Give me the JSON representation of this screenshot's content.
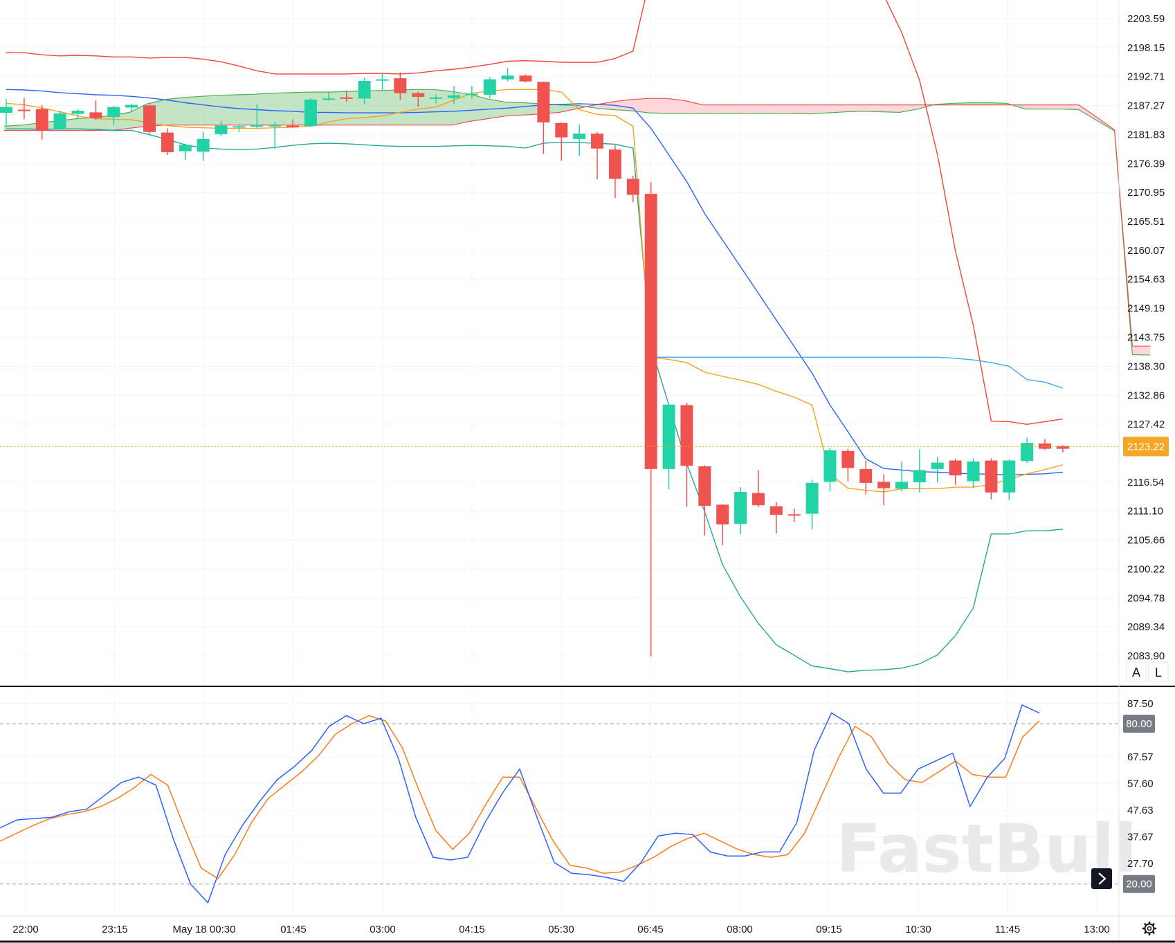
{
  "watermark": "FastBull",
  "price_marker": {
    "label": "2123.22",
    "value": 2123.22,
    "color": "#f5a623"
  },
  "osc_markers": [
    {
      "label": "80.00",
      "value": 80
    },
    {
      "label": "20.00",
      "value": 20
    }
  ],
  "buttons": {
    "auto": "A",
    "log": "L"
  },
  "icons": {
    "scroll": "chevron-right-icon",
    "settings": "gear-icon"
  },
  "colors": {
    "up": "#22d3a6",
    "down": "#ef5350",
    "upper_band": "#f44336",
    "lower_band": "#26a69a",
    "kijun": "#2962ff",
    "tenkan": "#f7a21b",
    "cloud_up": "#a5d6a7",
    "cloud_down": "#ffcdd2",
    "k_line": "#2962ff",
    "d_line": "#ff7a1a"
  },
  "chart_data": [
    {
      "type": "candlestick",
      "x_tick_labels": [
        "22:00",
        "23:15",
        "May 18 00:30",
        "01:45",
        "03:00",
        "04:15",
        "05:30",
        "06:45",
        "08:00",
        "09:15",
        "10:30",
        "11:45",
        "13:00"
      ],
      "y_tick_labels": [
        "2203.59",
        "2198.15",
        "2192.71",
        "2187.27",
        "2181.83",
        "2176.39",
        "2170.95",
        "2165.51",
        "2160.07",
        "2154.63",
        "2149.19",
        "2143.75",
        "2138.30",
        "2132.86",
        "2127.42",
        "2116.54",
        "2111.10",
        "2105.66",
        "2100.22",
        "2094.78",
        "2089.34",
        "2083.90"
      ],
      "y_range": [
        2081.3,
        2206.2
      ],
      "candles": [
        {
          "o": 2185.9,
          "h": 2188.5,
          "l": 2183.5,
          "c": 2187.0
        },
        {
          "o": 2186.5,
          "h": 2188.7,
          "l": 2184.7,
          "c": 2186.4
        },
        {
          "o": 2186.6,
          "h": 2187.4,
          "l": 2180.9,
          "c": 2182.6
        },
        {
          "o": 2182.9,
          "h": 2186.3,
          "l": 2182.5,
          "c": 2185.8
        },
        {
          "o": 2185.7,
          "h": 2186.6,
          "l": 2184.7,
          "c": 2186.3
        },
        {
          "o": 2186.0,
          "h": 2188.2,
          "l": 2184.6,
          "c": 2184.9
        },
        {
          "o": 2185.1,
          "h": 2187.2,
          "l": 2183.6,
          "c": 2187.0
        },
        {
          "o": 2186.9,
          "h": 2187.6,
          "l": 2186.0,
          "c": 2187.4
        },
        {
          "o": 2187.3,
          "h": 2187.5,
          "l": 2182.0,
          "c": 2182.3
        },
        {
          "o": 2182.2,
          "h": 2183.0,
          "l": 2178.0,
          "c": 2178.5
        },
        {
          "o": 2178.7,
          "h": 2180.1,
          "l": 2177.1,
          "c": 2179.9
        },
        {
          "o": 2178.6,
          "h": 2182.3,
          "l": 2176.9,
          "c": 2181.0
        },
        {
          "o": 2181.9,
          "h": 2184.4,
          "l": 2181.5,
          "c": 2183.5
        },
        {
          "o": 2183.2,
          "h": 2183.6,
          "l": 2182.3,
          "c": 2183.4
        },
        {
          "o": 2183.3,
          "h": 2187.5,
          "l": 2183.0,
          "c": 2183.6
        },
        {
          "o": 2183.4,
          "h": 2184.2,
          "l": 2179.1,
          "c": 2183.6
        },
        {
          "o": 2183.5,
          "h": 2184.7,
          "l": 2183.1,
          "c": 2183.2
        },
        {
          "o": 2183.4,
          "h": 2188.6,
          "l": 2183.3,
          "c": 2188.4
        },
        {
          "o": 2188.5,
          "h": 2189.7,
          "l": 2188.2,
          "c": 2188.6
        },
        {
          "o": 2188.8,
          "h": 2190.1,
          "l": 2188.0,
          "c": 2188.7
        },
        {
          "o": 2188.6,
          "h": 2192.5,
          "l": 2187.5,
          "c": 2191.9
        },
        {
          "o": 2192.1,
          "h": 2193.2,
          "l": 2190.0,
          "c": 2192.2
        },
        {
          "o": 2192.4,
          "h": 2193.5,
          "l": 2188.3,
          "c": 2189.6
        },
        {
          "o": 2189.6,
          "h": 2189.9,
          "l": 2187.0,
          "c": 2188.9
        },
        {
          "o": 2188.8,
          "h": 2189.3,
          "l": 2187.7,
          "c": 2188.8
        },
        {
          "o": 2188.7,
          "h": 2190.9,
          "l": 2187.6,
          "c": 2189.2
        },
        {
          "o": 2189.3,
          "h": 2190.9,
          "l": 2188.6,
          "c": 2189.5
        },
        {
          "o": 2189.3,
          "h": 2192.6,
          "l": 2188.7,
          "c": 2192.2
        },
        {
          "o": 2192.2,
          "h": 2194.3,
          "l": 2191.8,
          "c": 2192.9
        },
        {
          "o": 2192.9,
          "h": 2193.1,
          "l": 2191.6,
          "c": 2191.8
        },
        {
          "o": 2191.7,
          "h": 2191.8,
          "l": 2178.2,
          "c": 2184.1
        },
        {
          "o": 2184.0,
          "h": 2184.1,
          "l": 2176.9,
          "c": 2181.3
        },
        {
          "o": 2181.0,
          "h": 2183.7,
          "l": 2177.8,
          "c": 2182.0
        },
        {
          "o": 2182.0,
          "h": 2182.3,
          "l": 2173.4,
          "c": 2179.2
        },
        {
          "o": 2179.0,
          "h": 2179.8,
          "l": 2169.9,
          "c": 2173.5
        },
        {
          "o": 2173.5,
          "h": 2174.1,
          "l": 2169.1,
          "c": 2170.5
        },
        {
          "o": 2170.7,
          "h": 2172.9,
          "l": 2083.8,
          "c": 2119.0
        },
        {
          "o": 2119.0,
          "h": 2131.3,
          "l": 2115.2,
          "c": 2131.1
        },
        {
          "o": 2131.0,
          "h": 2131.5,
          "l": 2111.9,
          "c": 2119.6
        },
        {
          "o": 2119.5,
          "h": 2119.7,
          "l": 2106.5,
          "c": 2112.1
        },
        {
          "o": 2112.3,
          "h": 2112.4,
          "l": 2104.7,
          "c": 2108.6
        },
        {
          "o": 2108.7,
          "h": 2115.6,
          "l": 2106.8,
          "c": 2114.7
        },
        {
          "o": 2114.5,
          "h": 2118.8,
          "l": 2111.8,
          "c": 2112.2
        },
        {
          "o": 2112.0,
          "h": 2112.8,
          "l": 2106.9,
          "c": 2110.4
        },
        {
          "o": 2110.5,
          "h": 2111.6,
          "l": 2109.0,
          "c": 2110.4
        },
        {
          "o": 2110.6,
          "h": 2117.0,
          "l": 2107.7,
          "c": 2116.4
        },
        {
          "o": 2116.6,
          "h": 2123.0,
          "l": 2114.8,
          "c": 2122.5
        },
        {
          "o": 2122.4,
          "h": 2122.8,
          "l": 2116.7,
          "c": 2119.2
        },
        {
          "o": 2119.0,
          "h": 2120.6,
          "l": 2114.2,
          "c": 2116.4
        },
        {
          "o": 2116.6,
          "h": 2118.0,
          "l": 2112.2,
          "c": 2115.4
        },
        {
          "o": 2115.3,
          "h": 2120.4,
          "l": 2114.8,
          "c": 2116.6
        },
        {
          "o": 2116.5,
          "h": 2122.7,
          "l": 2114.6,
          "c": 2118.8
        },
        {
          "o": 2119.0,
          "h": 2121.3,
          "l": 2116.5,
          "c": 2120.2
        },
        {
          "o": 2120.6,
          "h": 2120.9,
          "l": 2116.0,
          "c": 2117.8
        },
        {
          "o": 2116.7,
          "h": 2121.0,
          "l": 2115.4,
          "c": 2120.4
        },
        {
          "o": 2120.6,
          "h": 2121.0,
          "l": 2113.3,
          "c": 2114.6
        },
        {
          "o": 2114.6,
          "h": 2120.8,
          "l": 2113.2,
          "c": 2120.6
        },
        {
          "o": 2120.5,
          "h": 2124.9,
          "l": 2120.1,
          "c": 2123.9
        },
        {
          "o": 2123.8,
          "h": 2124.6,
          "l": 2122.6,
          "c": 2122.8
        },
        {
          "o": 2123.3,
          "h": 2123.5,
          "l": 2122.1,
          "c": 2122.8
        }
      ],
      "upper_band": [
        2197.2,
        2197.2,
        2196.8,
        2196.6,
        2196.7,
        2196.6,
        2196.4,
        2196.4,
        2196.2,
        2196.3,
        2196.3,
        2196.0,
        2195.5,
        2194.7,
        2193.8,
        2193.2,
        2193.2,
        2193.2,
        2193.2,
        2193.2,
        2193.3,
        2193.3,
        2193.2,
        2193.4,
        2193.8,
        2194.1,
        2194.5,
        2195.0,
        2195.6,
        2195.7,
        2195.6,
        2195.4,
        2195.4,
        2195.4,
        2196.1,
        2197.5,
        2212,
        2220,
        2225,
        2228,
        2232,
        2235,
        2237,
        2239,
        2240,
        2241,
        2229,
        2218,
        2212,
        2208,
        2201,
        2192,
        2178,
        2160,
        2146,
        2128,
        2127.9,
        2127.4,
        2127.9,
        2128.4
      ],
      "lower_band": [
        2182.9,
        2182.9,
        2182.8,
        2182.9,
        2182.9,
        2182.8,
        2182.6,
        2182.6,
        2181.8,
        2180.9,
        2179.9,
        2179.3,
        2179.1,
        2179.0,
        2179.1,
        2179.4,
        2179.8,
        2180.1,
        2180.2,
        2180.1,
        2179.9,
        2179.7,
        2179.6,
        2179.6,
        2179.6,
        2179.7,
        2179.8,
        2179.7,
        2179.6,
        2179.3,
        2180.2,
        2180.4,
        2180.3,
        2180.2,
        2180.0,
        2179.3,
        2142,
        2131,
        2120,
        2111,
        2101,
        2095,
        2090,
        2086,
        2084,
        2082,
        2081.5,
        2080.9,
        2081.2,
        2081.3,
        2081.6,
        2082.4,
        2084.1,
        2087.7,
        2092.9,
        2106.8,
        2106.8,
        2107.4,
        2107.4,
        2107.7
      ],
      "kijun": [
        2190.3,
        2190.2,
        2190.0,
        2189.7,
        2189.5,
        2189.3,
        2189.2,
        2189.0,
        2188.7,
        2188.3,
        2187.8,
        2187.4,
        2187.0,
        2186.7,
        2186.5,
        2186.3,
        2186.2,
        2186.0,
        2186.0,
        2185.9,
        2185.9,
        2185.9,
        2185.9,
        2186.0,
        2186.1,
        2186.2,
        2186.4,
        2186.6,
        2186.8,
        2187.1,
        2187.4,
        2187.5,
        2187.6,
        2187.5,
        2187.3,
        2186.8,
        2183,
        2178,
        2173,
        2167,
        2162,
        2157,
        2152,
        2147,
        2142,
        2137,
        2131,
        2126,
        2120.9,
        2119.1,
        2118.8,
        2118.5,
        2118.4,
        2118.2,
        2118.1,
        2118.0,
        2117.9,
        2118.0,
        2118.1,
        2118.4
      ],
      "tenkan": [
        2187.7,
        2187.4,
        2186.8,
        2186.1,
        2185.3,
        2184.8,
        2184.7,
        2184.6,
        2184.0,
        2183.5,
        2183.2,
        2183.1,
        2183.0,
        2183.0,
        2183.0,
        2183.1,
        2183.2,
        2183.4,
        2184.2,
        2184.8,
        2185.0,
        2185.3,
        2186.0,
        2186.6,
        2187.0,
        2188.3,
        2189.6,
        2190.0,
        2190.3,
        2190.3,
        2190.3,
        2189.8,
        2186.5,
        2185.6,
        2185.4,
        2183.4,
        2140.0,
        2139.6,
        2139.0,
        2137.2,
        2136.4,
        2135.7,
        2134.9,
        2133.6,
        2132.5,
        2131.0,
        2118.0,
        2115.4,
        2115.0,
        2114.7,
        2115.3,
        2115.3,
        2115.3,
        2115.6,
        2115.6,
        2116.1,
        2117.1,
        2118.1,
        2118.9,
        2119.8
      ],
      "kijun_flat": {
        "level": 2140.0,
        "tail": [
          2140.0,
          2139.8,
          2139.5,
          2139.0,
          2138.3,
          2135.8,
          2135.3,
          2134.2
        ]
      },
      "cloud_a": [
        2183.4,
        2183.6,
        2184.0,
        2184.4,
        2184.8,
        2185.0,
        2185.4,
        2186.0,
        2187.6,
        2188.4,
        2188.8,
        2189.0,
        2189.2,
        2189.3,
        2189.4,
        2189.6,
        2189.7,
        2189.8,
        2189.8,
        2189.9,
        2190.0,
        2190.1,
        2190.2,
        2190.3,
        2190.3,
        2189.9,
        2189.4,
        2188.5,
        2187.9,
        2187.8,
        2187.6,
        2187.4,
        2187.3,
        2186.8,
        2186.5,
        2186.3,
        2185.9,
        2185.8,
        2185.8,
        2185.8,
        2185.8,
        2185.8,
        2185.8,
        2185.8,
        2185.8,
        2185.7,
        2185.9,
        2186.1,
        2186.2,
        2186.1,
        2186.0,
        2186.6,
        2187.5,
        2187.7,
        2187.8,
        2187.8,
        2187.7,
        2186.6,
        2186.6,
        2186.6,
        2186.5,
        2184.5,
        2182.5,
        2140.5,
        2140.4
      ],
      "cloud_b": [
        2182.6,
        2182.6,
        2182.6,
        2182.6,
        2182.6,
        2182.6,
        2182.6,
        2183.0,
        2183.4,
        2183.6,
        2183.6,
        2183.6,
        2183.6,
        2183.6,
        2183.6,
        2183.6,
        2183.6,
        2183.6,
        2183.6,
        2183.6,
        2183.6,
        2183.6,
        2183.6,
        2183.6,
        2183.6,
        2183.6,
        2184.3,
        2184.8,
        2185.3,
        2185.5,
        2185.7,
        2186.0,
        2186.7,
        2187.4,
        2188.0,
        2188.4,
        2188.6,
        2188.6,
        2188.2,
        2187.4,
        2187.4,
        2187.4,
        2187.4,
        2187.4,
        2187.4,
        2187.4,
        2187.4,
        2187.4,
        2187.4,
        2187.4,
        2187.4,
        2187.4,
        2187.4,
        2187.4,
        2187.4,
        2187.4,
        2187.4,
        2187.4,
        2187.4,
        2187.4,
        2187.4,
        2185.1,
        2182.7,
        2142.1,
        2142.1
      ]
    },
    {
      "type": "line",
      "y_tick_labels": [
        "87.50",
        "67.57",
        "57.60",
        "47.63",
        "37.67",
        "27.70"
      ],
      "y_range": [
        11.7,
        97.6
      ],
      "reference_levels": [
        80,
        20
      ],
      "series": [
        {
          "values": [
            41,
            44,
            44.5,
            45,
            47,
            48,
            53,
            58,
            60,
            57,
            37,
            20,
            13,
            31,
            42,
            51,
            59,
            64,
            70,
            79,
            83,
            80,
            82,
            67,
            45,
            30,
            29,
            30,
            43,
            54,
            63,
            45,
            28,
            24,
            23.5,
            22.5,
            21,
            28,
            38,
            39,
            38.5,
            32,
            30.5,
            30.5,
            32,
            32,
            43,
            70,
            84,
            80,
            63,
            54,
            54,
            63,
            66,
            69,
            49,
            60,
            67,
            87,
            84
          ]
        },
        {
          "values": [
            36,
            39,
            42,
            44.5,
            46,
            47,
            49,
            52,
            56,
            61,
            57,
            41,
            26,
            22,
            31,
            43,
            52,
            57,
            62,
            68,
            76,
            80,
            83,
            81,
            71,
            55,
            40,
            33,
            39,
            50,
            60,
            60,
            48,
            36,
            27,
            26,
            24,
            24.5,
            27,
            30,
            34,
            37,
            39,
            36,
            33,
            31,
            30,
            31,
            39,
            53,
            67,
            79,
            75,
            65,
            59,
            58,
            62,
            66,
            61,
            60,
            60,
            75,
            81
          ]
        }
      ]
    }
  ]
}
